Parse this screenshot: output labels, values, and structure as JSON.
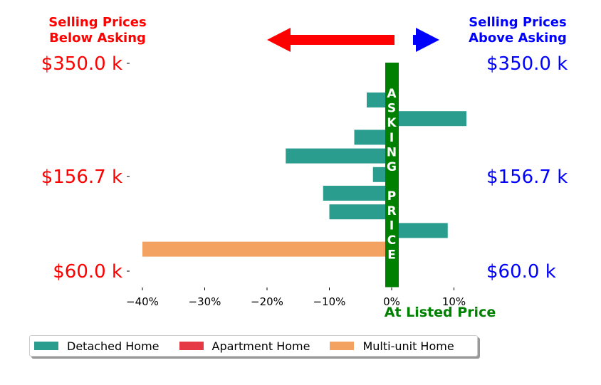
{
  "header": {
    "left_line1": "Selling Prices",
    "left_line2": "Below Asking",
    "right_line1": "Selling Prices",
    "right_line2": "Above Asking",
    "left_color": "#ff0000",
    "right_color": "#0000ff"
  },
  "center_label": "At Listed Price",
  "center_color": "#008000",
  "asking_letters": [
    "A",
    "S",
    "K",
    "I",
    "N",
    "G",
    "",
    "P",
    "R",
    "I",
    "C",
    "E"
  ],
  "chart_data": {
    "type": "bar",
    "orientation": "horizontal",
    "xlim": [
      -40,
      15
    ],
    "x_ticks": [
      -40,
      -30,
      -20,
      -10,
      0,
      10
    ],
    "x_tick_labels": [
      "−40%",
      "−30%",
      "−20%",
      "−10%",
      "0%",
      "10%"
    ],
    "y_tick_labels": [
      "$350.0 k",
      "$156.7 k",
      "$60.0 k"
    ],
    "y_tick_label_colors_left": "#ff0000",
    "y_tick_label_colors_right": "#0000ff",
    "bars": [
      {
        "series": "Detached Home",
        "value": -4
      },
      {
        "series": "Detached Home",
        "value": 12
      },
      {
        "series": "Detached Home",
        "value": -6
      },
      {
        "series": "Detached Home",
        "value": -17
      },
      {
        "series": "Detached Home",
        "value": -3
      },
      {
        "series": "Detached Home",
        "value": -11
      },
      {
        "series": "Detached Home",
        "value": -10
      },
      {
        "series": "Detached Home",
        "value": 9
      },
      {
        "series": "Multi-unit Home",
        "value": -40
      }
    ],
    "legend": [
      {
        "name": "Detached Home",
        "color": "#2a9d8f"
      },
      {
        "name": "Apartment Home",
        "color": "#e63946"
      },
      {
        "name": "Multi-unit Home",
        "color": "#f4a261"
      }
    ],
    "legend_position": "bottom-left",
    "grid": false
  }
}
